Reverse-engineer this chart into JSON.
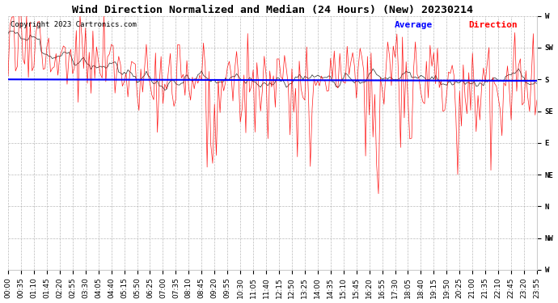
{
  "title": "Wind Direction Normalized and Median (24 Hours) (New) 20230214",
  "copyright": "Copyright 2023 Cartronics.com",
  "background_color": "#ffffff",
  "plot_background": "#ffffff",
  "grid_color": "#aaaaaa",
  "ytick_labels": [
    "W",
    "SW",
    "S",
    "SE",
    "E",
    "NE",
    "N",
    "NW",
    "W"
  ],
  "ytick_values": [
    360,
    315,
    270,
    225,
    180,
    135,
    90,
    45,
    0
  ],
  "ylim": [
    0,
    360
  ],
  "red_color": "#ff0000",
  "black_color": "#000000",
  "blue_color": "#0000ff",
  "title_fontsize": 9.5,
  "copyright_fontsize": 6.5,
  "legend_fontsize": 8,
  "tick_fontsize": 6.5,
  "figwidth": 6.9,
  "figheight": 3.75,
  "dpi": 100
}
